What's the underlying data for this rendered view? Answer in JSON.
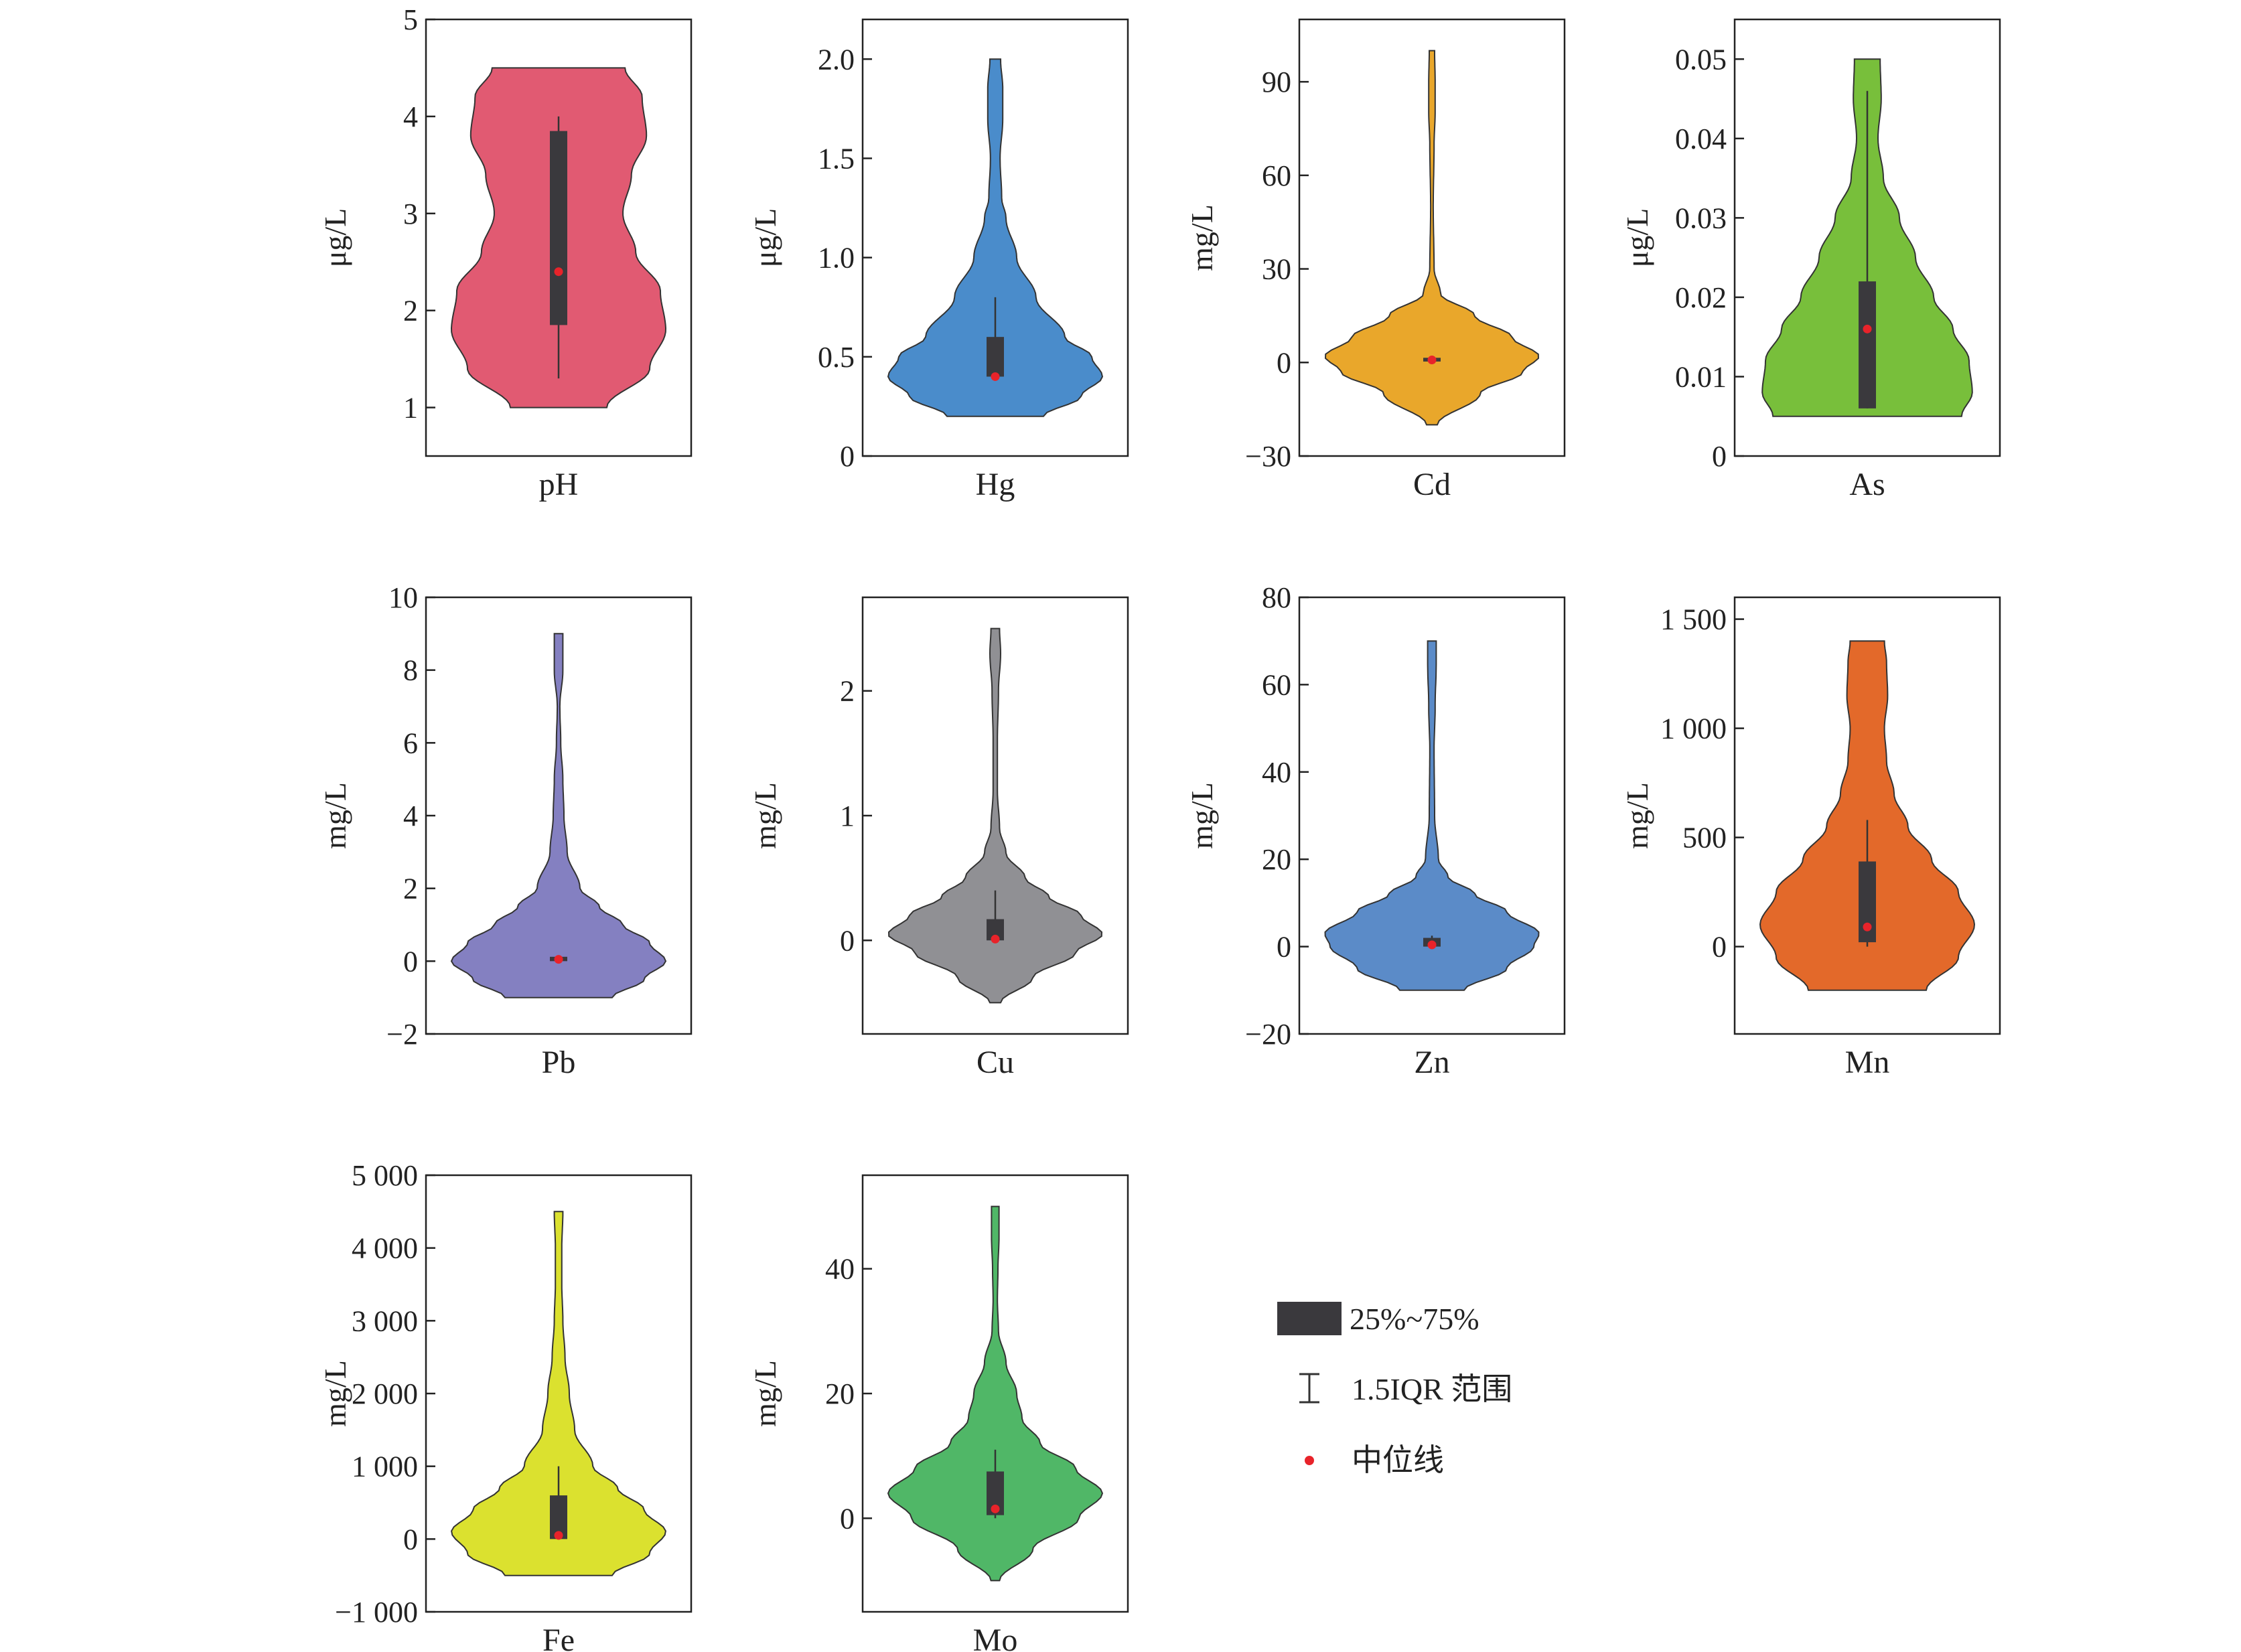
{
  "legend": {
    "box_label": "25%~75%",
    "whisker_label": "1.5IQR 范围",
    "median_label": "中位线",
    "box_color": "#3a393d",
    "median_color": "#e8232a"
  },
  "chart_data": [
    {
      "type": "violin",
      "category": "pH",
      "ylabel": "μg/L",
      "color": "#e15a72",
      "ylim": [
        0.5,
        5
      ],
      "ticks": [
        1,
        2,
        3,
        4,
        5
      ],
      "tick_labels": [
        "1",
        "2",
        "3",
        "4",
        "5"
      ],
      "range": [
        1,
        4.5
      ],
      "density": [
        [
          1,
          0.45
        ],
        [
          1.4,
          0.85
        ],
        [
          1.8,
          1.0
        ],
        [
          2.2,
          0.95
        ],
        [
          2.6,
          0.72
        ],
        [
          3.0,
          0.6
        ],
        [
          3.4,
          0.68
        ],
        [
          3.8,
          0.82
        ],
        [
          4.2,
          0.78
        ],
        [
          4.5,
          0.62
        ]
      ],
      "q1": 1.85,
      "q3": 3.85,
      "whisker": [
        1.3,
        4.0
      ],
      "median": 2.4
    },
    {
      "type": "violin",
      "category": "Hg",
      "ylabel": "μg/L",
      "color": "#4a8ccb",
      "ylim": [
        0,
        2.2
      ],
      "ticks": [
        0,
        0.5,
        1.0,
        1.5,
        2.0
      ],
      "tick_labels": [
        "0",
        "0.5",
        "1.0",
        "1.5",
        "2.0"
      ],
      "range": [
        0.2,
        2.0
      ],
      "density": [
        [
          0.2,
          0.45
        ],
        [
          0.3,
          0.8
        ],
        [
          0.4,
          1.0
        ],
        [
          0.5,
          0.9
        ],
        [
          0.6,
          0.65
        ],
        [
          0.8,
          0.38
        ],
        [
          1.0,
          0.2
        ],
        [
          1.2,
          0.1
        ],
        [
          1.3,
          0.06
        ],
        [
          1.5,
          0.045
        ],
        [
          1.7,
          0.07
        ],
        [
          1.85,
          0.07
        ],
        [
          2.0,
          0.05
        ]
      ],
      "q1": 0.4,
      "q3": 0.6,
      "whisker": [
        0.4,
        0.8
      ],
      "median": 0.4
    },
    {
      "type": "violin",
      "category": "Cd",
      "ylabel": "mg/L",
      "color": "#e9a72b",
      "ylim": [
        -30,
        110
      ],
      "ticks": [
        -30,
        0,
        30,
        60,
        90
      ],
      "tick_labels": [
        "−30",
        "0",
        "30",
        "60",
        "90"
      ],
      "range": [
        -20,
        100
      ],
      "density": [
        [
          -20,
          0.05
        ],
        [
          -10,
          0.45
        ],
        [
          -3,
          0.85
        ],
        [
          2,
          1.0
        ],
        [
          8,
          0.75
        ],
        [
          15,
          0.4
        ],
        [
          22,
          0.08
        ],
        [
          30,
          0.02
        ],
        [
          50,
          0.012
        ],
        [
          70,
          0.02
        ],
        [
          80,
          0.03
        ],
        [
          90,
          0.03
        ],
        [
          100,
          0.025
        ]
      ],
      "q1": 0.3,
      "q3": 1.5,
      "whisker": [
        0,
        2
      ],
      "median": 0.8
    },
    {
      "type": "violin",
      "category": "As",
      "ylabel": "μg/L",
      "color": "#78bf3b",
      "ylim": [
        0,
        0.055
      ],
      "ticks": [
        0,
        0.01,
        0.02,
        0.03,
        0.04,
        0.05
      ],
      "tick_labels": [
        "0",
        "0.01",
        "0.02",
        "0.03",
        "0.04",
        "0.05"
      ],
      "range": [
        0.005,
        0.05
      ],
      "density": [
        [
          0.005,
          0.88
        ],
        [
          0.008,
          0.98
        ],
        [
          0.012,
          0.95
        ],
        [
          0.016,
          0.8
        ],
        [
          0.02,
          0.62
        ],
        [
          0.025,
          0.45
        ],
        [
          0.03,
          0.3
        ],
        [
          0.035,
          0.15
        ],
        [
          0.04,
          0.1
        ],
        [
          0.045,
          0.13
        ],
        [
          0.05,
          0.12
        ]
      ],
      "q1": 0.006,
      "q3": 0.022,
      "whisker": [
        0.006,
        0.046
      ],
      "median": 0.016
    },
    {
      "type": "violin",
      "category": "Pb",
      "ylabel": "mg/L",
      "color": "#8480c1",
      "ylim": [
        -2,
        10
      ],
      "ticks": [
        -2,
        0,
        2,
        4,
        6,
        8,
        10
      ],
      "tick_labels": [
        "−2",
        "0",
        "2",
        "4",
        "6",
        "8",
        "10"
      ],
      "range": [
        -1,
        9
      ],
      "density": [
        [
          -1,
          0.5
        ],
        [
          -0.5,
          0.8
        ],
        [
          0,
          1.0
        ],
        [
          0.5,
          0.85
        ],
        [
          1,
          0.6
        ],
        [
          1.5,
          0.38
        ],
        [
          2,
          0.2
        ],
        [
          3,
          0.08
        ],
        [
          4,
          0.05
        ],
        [
          5,
          0.04
        ],
        [
          6,
          0.02
        ],
        [
          7,
          0.012
        ],
        [
          8,
          0.04
        ],
        [
          9,
          0.04
        ]
      ],
      "q1": 0.0,
      "q3": 0.12,
      "whisker": [
        0,
        0.12
      ],
      "median": 0.05
    },
    {
      "type": "violin",
      "category": "Cu",
      "ylabel": "mg/L",
      "color": "#909094",
      "ylim": [
        -0.75,
        2.75
      ],
      "ticks": [
        0,
        1,
        2
      ],
      "tick_labels": [
        "0",
        "1",
        "2"
      ],
      "range": [
        -0.5,
        2.5
      ],
      "density": [
        [
          -0.5,
          0.05
        ],
        [
          -0.3,
          0.35
        ],
        [
          -0.1,
          0.75
        ],
        [
          0.05,
          1.0
        ],
        [
          0.2,
          0.8
        ],
        [
          0.35,
          0.5
        ],
        [
          0.5,
          0.28
        ],
        [
          0.7,
          0.1
        ],
        [
          0.9,
          0.04
        ],
        [
          1.2,
          0.02
        ],
        [
          1.6,
          0.02
        ],
        [
          2.0,
          0.03
        ],
        [
          2.3,
          0.05
        ],
        [
          2.5,
          0.04
        ]
      ],
      "q1": 0.0,
      "q3": 0.17,
      "whisker": [
        0,
        0.4
      ],
      "median": 0.01
    },
    {
      "type": "violin",
      "category": "Zn",
      "ylabel": "mg/L",
      "color": "#5b8bc8",
      "ylim": [
        -20,
        80
      ],
      "ticks": [
        -20,
        0,
        20,
        40,
        60,
        80
      ],
      "tick_labels": [
        "−20",
        "0",
        "20",
        "40",
        "60",
        "80"
      ],
      "range": [
        -10,
        70
      ],
      "density": [
        [
          -10,
          0.3
        ],
        [
          -5,
          0.7
        ],
        [
          0,
          0.95
        ],
        [
          3,
          1.0
        ],
        [
          8,
          0.7
        ],
        [
          12,
          0.4
        ],
        [
          16,
          0.15
        ],
        [
          20,
          0.06
        ],
        [
          30,
          0.025
        ],
        [
          45,
          0.02
        ],
        [
          55,
          0.03
        ],
        [
          65,
          0.04
        ],
        [
          70,
          0.04
        ]
      ],
      "q1": 0.0,
      "q3": 2.0,
      "whisker": [
        0,
        2.5
      ],
      "median": 0.4
    },
    {
      "type": "violin",
      "category": "Mn",
      "ylabel": "mg/L",
      "color": "#e3692a",
      "ylim": [
        -400,
        1600
      ],
      "ticks": [
        0,
        500,
        1000,
        1500
      ],
      "tick_labels": [
        "0",
        "500",
        "1 000",
        "1 500"
      ],
      "range": [
        -200,
        1400
      ],
      "density": [
        [
          -200,
          0.55
        ],
        [
          -50,
          0.85
        ],
        [
          100,
          1.0
        ],
        [
          250,
          0.85
        ],
        [
          400,
          0.6
        ],
        [
          550,
          0.38
        ],
        [
          700,
          0.25
        ],
        [
          850,
          0.18
        ],
        [
          1000,
          0.16
        ],
        [
          1150,
          0.19
        ],
        [
          1300,
          0.18
        ],
        [
          1400,
          0.16
        ]
      ],
      "q1": 20,
      "q3": 390,
      "whisker": [
        0,
        580
      ],
      "median": 90
    },
    {
      "type": "violin",
      "category": "Fe",
      "ylabel": "mg/L",
      "color": "#dbe12f",
      "ylim": [
        -1000,
        5000
      ],
      "ticks": [
        -1000,
        0,
        1000,
        2000,
        3000,
        4000,
        5000
      ],
      "tick_labels": [
        "−1 000",
        "0",
        "1 000",
        "2 000",
        "3 000",
        "4 000",
        "5 000"
      ],
      "range": [
        -500,
        4500
      ],
      "density": [
        [
          -500,
          0.5
        ],
        [
          -200,
          0.85
        ],
        [
          100,
          1.0
        ],
        [
          400,
          0.8
        ],
        [
          700,
          0.55
        ],
        [
          1000,
          0.32
        ],
        [
          1500,
          0.15
        ],
        [
          2000,
          0.1
        ],
        [
          2500,
          0.06
        ],
        [
          3000,
          0.04
        ],
        [
          3500,
          0.03
        ],
        [
          4000,
          0.03
        ],
        [
          4500,
          0.04
        ]
      ],
      "q1": 0,
      "q3": 600,
      "whisker": [
        0,
        1000
      ],
      "median": 50
    },
    {
      "type": "violin",
      "category": "Mo",
      "ylabel": "mg/L",
      "color": "#50b767",
      "ylim": [
        -15,
        55
      ],
      "ticks": [
        0,
        20,
        40
      ],
      "tick_labels": [
        "0",
        "20",
        "40"
      ],
      "range": [
        -10,
        50
      ],
      "density": [
        [
          -10,
          0.04
        ],
        [
          -5,
          0.35
        ],
        [
          0,
          0.78
        ],
        [
          4,
          1.0
        ],
        [
          8,
          0.75
        ],
        [
          12,
          0.42
        ],
        [
          16,
          0.25
        ],
        [
          20,
          0.2
        ],
        [
          25,
          0.1
        ],
        [
          30,
          0.03
        ],
        [
          35,
          0.02
        ],
        [
          40,
          0.025
        ],
        [
          45,
          0.035
        ],
        [
          50,
          0.035
        ]
      ],
      "q1": 0.5,
      "q3": 7.5,
      "whisker": [
        0,
        11
      ],
      "median": 1.5
    }
  ]
}
